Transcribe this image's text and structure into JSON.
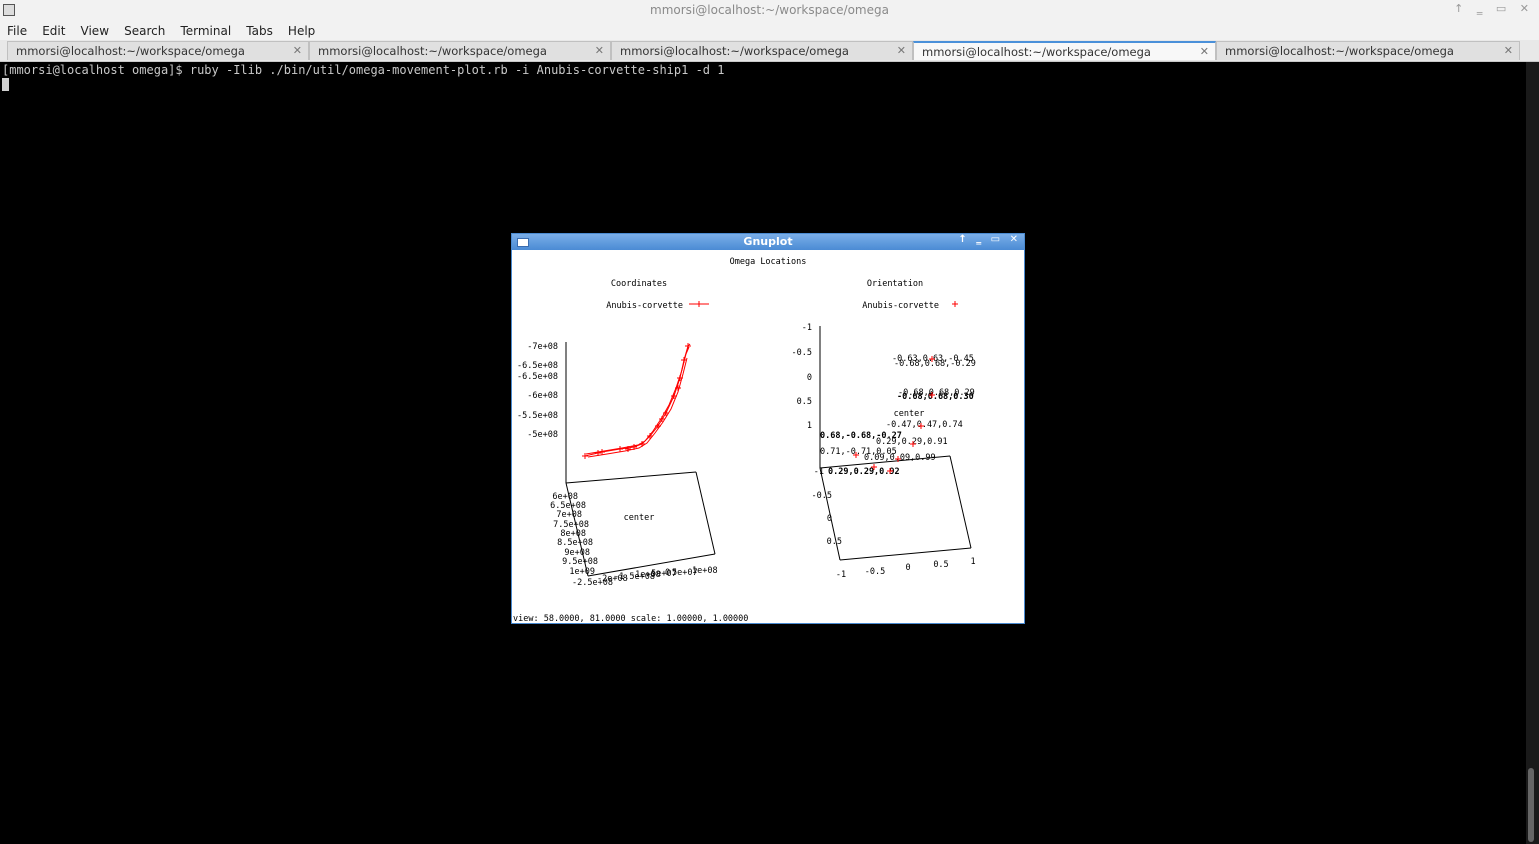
{
  "window": {
    "title": "mmorsi@localhost:~/workspace/omega",
    "controls": [
      "↑",
      "‗",
      "▭",
      "✕"
    ]
  },
  "menu": [
    "File",
    "Edit",
    "View",
    "Search",
    "Terminal",
    "Tabs",
    "Help"
  ],
  "tabs": [
    {
      "label": "mmorsi@localhost:~/workspace/omega",
      "active": false
    },
    {
      "label": "mmorsi@localhost:~/workspace/omega",
      "active": false
    },
    {
      "label": "mmorsi@localhost:~/workspace/omega",
      "active": false
    },
    {
      "label": "mmorsi@localhost:~/workspace/omega",
      "active": true
    },
    {
      "label": "mmorsi@localhost:~/workspace/omega",
      "active": false
    }
  ],
  "terminal": {
    "prompt": "[mmorsi@localhost omega]$ ruby -Ilib ./bin/util/omega-movement-plot.rb -i Anubis-corvette-ship1 -d 1"
  },
  "gnuplot": {
    "title": "Gnuplot",
    "plot_title": "Omega Locations",
    "status": "view:  58.0000,  81.0000   scale:  1.00000,  1.00000",
    "left": {
      "title": "Coordinates",
      "legend": "Anubis-corvette",
      "center_label": "center",
      "z_ticks": [
        "-7e+08",
        "-6.5e+08",
        "-6.5e+08",
        "-6e+08",
        "-5.5e+08",
        "-5e+08"
      ],
      "y_ticks": [
        "6e+08",
        "6.5e+08",
        "7e+08",
        "7.5e+08",
        "8e+08",
        "8.5e+08",
        "9e+08",
        "9.5e+08",
        "1e+09"
      ],
      "x_ticks": [
        "-2.5e+08",
        "-2e+08",
        "-1.5e+08",
        "-1e+08",
        "-5e+07",
        "0",
        "5e+07",
        "1e+08"
      ]
    },
    "right": {
      "title": "Orientation",
      "legend": "Anubis-corvette",
      "center_label": "center",
      "z_ticks": [
        "-1",
        "-0.5",
        "0",
        "0.5",
        "1"
      ],
      "y_ticks": [
        "-1",
        "-0.5",
        "0",
        "0.5"
      ],
      "x_ticks": [
        "-1",
        "-0.5",
        "0",
        "0.5",
        "1"
      ],
      "point_labels": [
        "-0.63,0.63,-0.45",
        "-0.68,0.68,-0.29",
        "-0.68,0.68,0.29",
        "-0.68,0.68,0.30",
        "-0.47,0.47,0.74",
        "0.68,-0.68,-0.27",
        "0.29,0.29,0.91",
        "0.71,-0.71,0.05",
        "0.09,0.09,0.99",
        "0.29,0.29,0.92"
      ]
    },
    "series_color": "#ff0000"
  }
}
